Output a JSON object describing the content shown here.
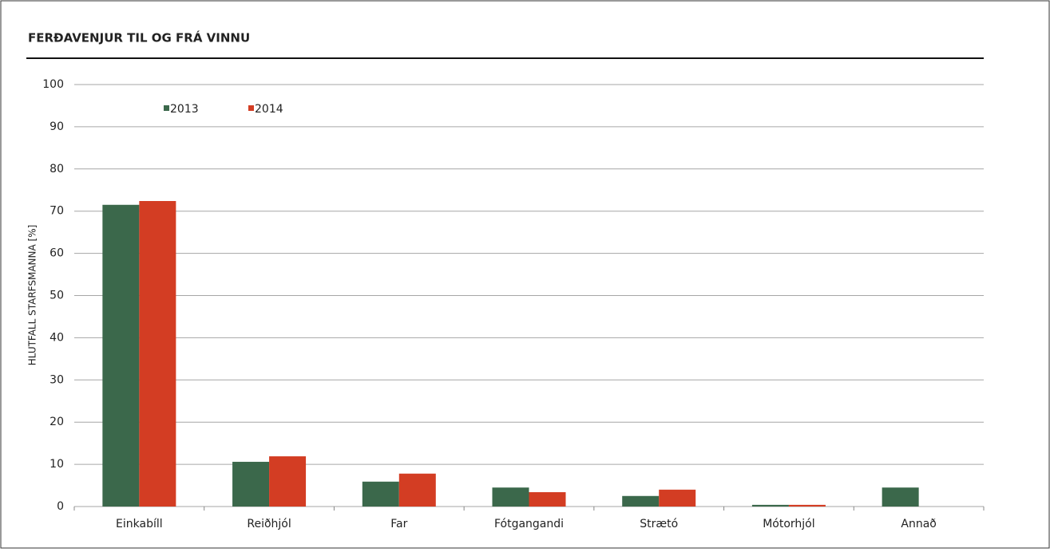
{
  "chart_data": {
    "type": "bar",
    "title": "FERÐAVENJUR TIL OG FRÁ VINNU",
    "y_label": "HLUTFALL  STARFSMANNA [%]",
    "categories": [
      "Einkabíll",
      "Reiðhjól",
      "Far",
      "Fótgangandi",
      "Strætó",
      "Mótorhjól",
      "Annað"
    ],
    "series": [
      {
        "name": "2013",
        "color": "#3b684b",
        "values": [
          71.5,
          10.6,
          5.9,
          4.5,
          2.5,
          0.4,
          4.5
        ]
      },
      {
        "name": "2014",
        "color": "#d33d23",
        "values": [
          72.4,
          11.9,
          7.8,
          3.4,
          4.0,
          0.4,
          0
        ]
      }
    ],
    "ylim": [
      0,
      100
    ],
    "yticks": [
      0,
      10,
      20,
      30,
      40,
      50,
      60,
      70,
      80,
      90,
      100
    ],
    "grid": true
  }
}
